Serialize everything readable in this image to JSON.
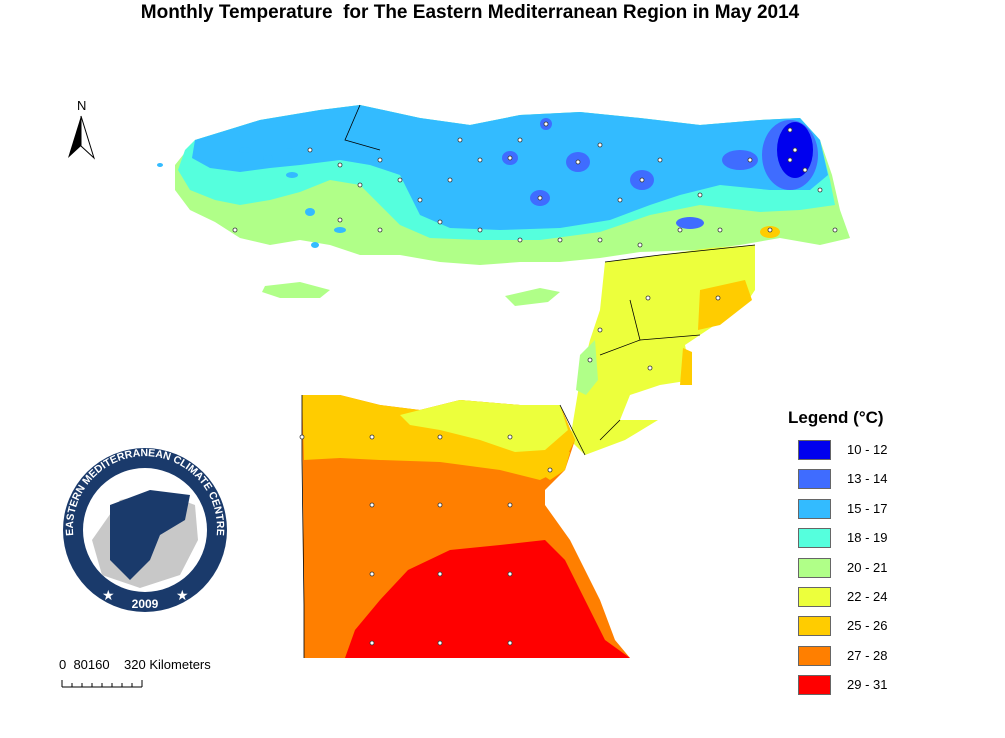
{
  "title": "Monthly Temperature  for The Eastern Mediterranean Region in May 2014",
  "north_label": "N",
  "scale_bar": {
    "text": "0  80160    320 Kilometers"
  },
  "legend": {
    "title": "Legend (°C)",
    "items": [
      {
        "label": "10 - 12",
        "color": "#0000ee"
      },
      {
        "label": "13 - 14",
        "color": "#3f6cff"
      },
      {
        "label": "15 - 17",
        "color": "#33bbff"
      },
      {
        "label": "18 - 19",
        "color": "#55ffdd"
      },
      {
        "label": "20 - 21",
        "color": "#b0ff88"
      },
      {
        "label": "22 - 24",
        "color": "#ecff3c"
      },
      {
        "label": "25 - 26",
        "color": "#ffcc00"
      },
      {
        "label": "27 - 28",
        "color": "#ff7f00"
      },
      {
        "label": "29 - 31",
        "color": "#ff0000"
      }
    ]
  },
  "logo": {
    "ring_text": "EASTERN MEDITERRANEAN CLIMATE CENTRE",
    "year": "2009",
    "ring_color": "#1a3a6b"
  }
}
